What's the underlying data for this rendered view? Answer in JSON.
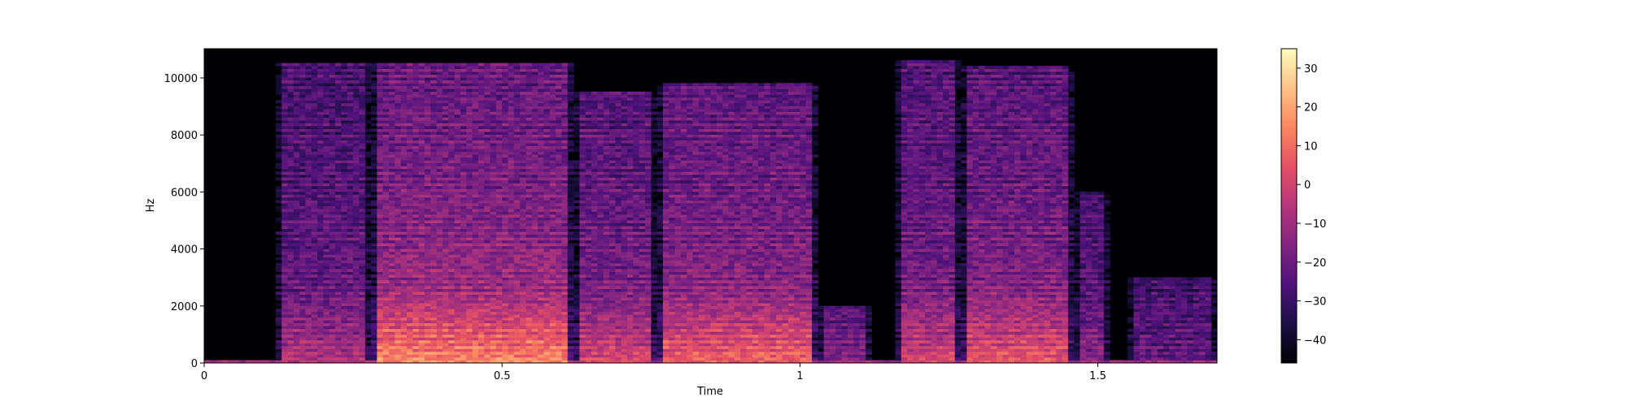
{
  "chart_data": {
    "type": "heatmap",
    "subtype": "spectrogram",
    "title": "",
    "xlabel": "Time",
    "ylabel": "Hz",
    "xlim": [
      0,
      1.7
    ],
    "ylim": [
      0,
      11025
    ],
    "x_ticks": [
      {
        "value": 0,
        "label": "0"
      },
      {
        "value": 0.5,
        "label": "0.5"
      },
      {
        "value": 1,
        "label": "1"
      },
      {
        "value": 1.5,
        "label": "1.5"
      }
    ],
    "y_ticks": [
      {
        "value": 0,
        "label": "0"
      },
      {
        "value": 2000,
        "label": "2000"
      },
      {
        "value": 4000,
        "label": "4000"
      },
      {
        "value": 6000,
        "label": "6000"
      },
      {
        "value": 8000,
        "label": "8000"
      },
      {
        "value": 10000,
        "label": "10000"
      }
    ],
    "colormap": "magma",
    "colorbar": {
      "range": [
        -46,
        35
      ],
      "ticks": [
        {
          "value": 30,
          "label": "30"
        },
        {
          "value": 20,
          "label": "20"
        },
        {
          "value": 10,
          "label": "10"
        },
        {
          "value": 0,
          "label": "0"
        },
        {
          "value": -10,
          "label": "−10"
        },
        {
          "value": -20,
          "label": "−20"
        },
        {
          "value": -30,
          "label": "−30"
        },
        {
          "value": -40,
          "label": "−40"
        }
      ]
    },
    "segments": [
      {
        "t_start": 0.12,
        "t_end": 1.12,
        "peak_db": 30
      },
      {
        "t_start": 1.16,
        "t_end": 1.52,
        "peak_db": 20
      },
      {
        "t_start": 1.55,
        "t_end": 1.7,
        "peak_db": -15
      }
    ],
    "grid": false,
    "legend": "none"
  }
}
